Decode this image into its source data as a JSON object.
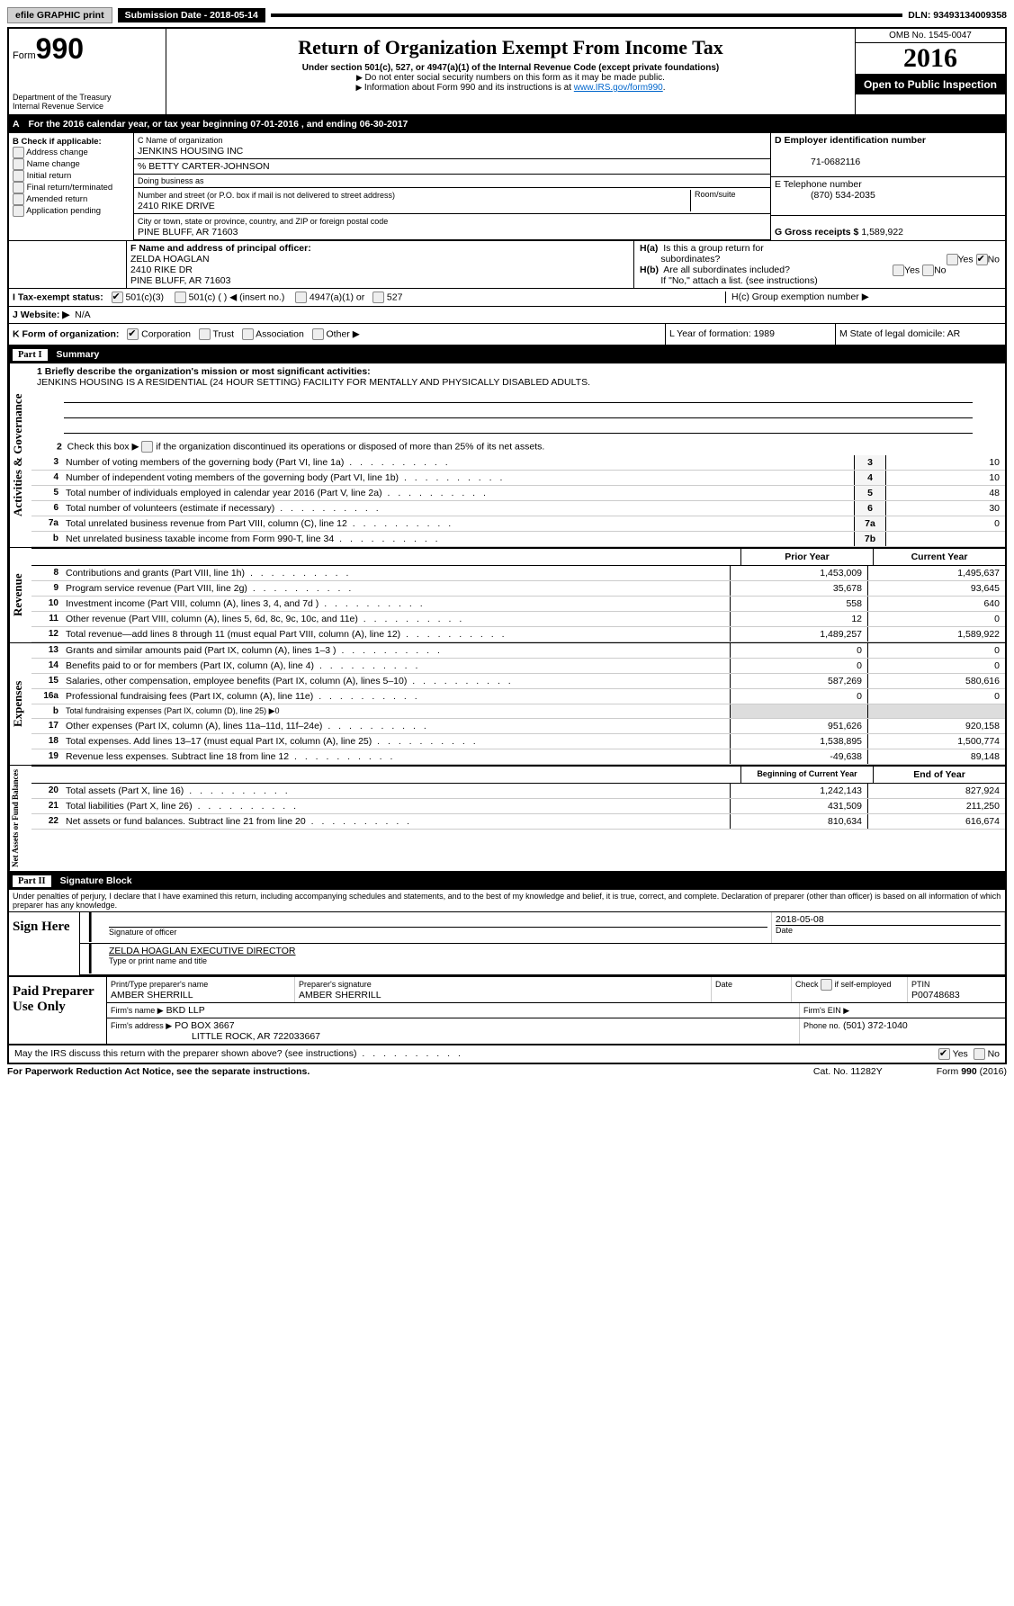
{
  "topbar": {
    "efile": "efile GRAPHIC print",
    "subdate_label": "Submission Date - 2018-05-14",
    "dln": "DLN: 93493134009358"
  },
  "header": {
    "form_label": "Form",
    "form_no": "990",
    "dept": "Department of the Treasury\nInternal Revenue Service",
    "title": "Return of Organization Exempt From Income Tax",
    "subtitle": "Under section 501(c), 527, or 4947(a)(1) of the Internal Revenue Code (except private foundations)",
    "note1": "Do not enter social security numbers on this form as it may be made public.",
    "note2": "Information about Form 990 and its instructions is at ",
    "note2_link": "www.IRS.gov/form990",
    "omb": "OMB No. 1545-0047",
    "year": "2016",
    "open": "Open to Public Inspection"
  },
  "period": {
    "label_a": "A",
    "text": "For the 2016 calendar year, or tax year beginning 07-01-2016   , and ending 06-30-2017"
  },
  "blockB": {
    "label": "B Check if applicable:",
    "opts": [
      "Address change",
      "Name change",
      "Initial return",
      "Final return/terminated",
      "Amended return",
      "Application pending"
    ]
  },
  "blockC": {
    "name_label": "C Name of organization",
    "name": "JENKINS HOUSING INC",
    "care_of": "% BETTY CARTER-JOHNSON",
    "dba_label": "Doing business as",
    "street_label": "Number and street (or P.O. box if mail is not delivered to street address)",
    "room_label": "Room/suite",
    "street": "2410 RIKE DRIVE",
    "city_label": "City or town, state or province, country, and ZIP or foreign postal code",
    "city": "PINE BLUFF, AR  71603"
  },
  "blockD": {
    "ein_label": "D Employer identification number",
    "ein": "71-0682116",
    "tel_label": "E Telephone number",
    "tel": "(870) 534-2035",
    "gross_label": "G Gross receipts $",
    "gross": "1,589,922"
  },
  "blockF": {
    "label": "F  Name and address of principal officer:",
    "name": "ZELDA HOAGLAN",
    "addr1": "2410 RIKE DR",
    "addr2": "PINE BLUFF, AR  71603"
  },
  "blockH": {
    "a_label": "H(a)  Is this a group return for subordinates?",
    "b_label": "H(b)  Are all subordinates included?",
    "b_note": "If \"No,\" attach a list. (see instructions)",
    "c_label": "H(c)  Group exemption number ▶"
  },
  "taxExempt": {
    "label": "I  Tax-exempt status:",
    "c3": "501(c)(3)",
    "c": "501(c) (   ) ◀ (insert no.)",
    "a1": "4947(a)(1) or",
    "s527": "527"
  },
  "website": {
    "label": "J  Website: ▶",
    "val": "N/A"
  },
  "kline": {
    "label": "K Form of organization:",
    "corp": "Corporation",
    "trust": "Trust",
    "assoc": "Association",
    "other": "Other ▶",
    "L": "L Year of formation: 1989",
    "M": "M State of legal domicile: AR"
  },
  "part1": {
    "title": "Summary",
    "q1_label": "1  Briefly describe the organization's mission or most significant activities:",
    "q1_text": "JENKINS HOUSING IS A RESIDENTIAL (24 HOUR SETTING) FACILITY FOR MENTALLY AND PHYSICALLY DISABLED ADULTS.",
    "q2": "Check this box ▶  if the organization discontinued its operations or disposed of more than 25% of its net assets.",
    "lines_gov": [
      {
        "no": "3",
        "desc": "Number of voting members of the governing body (Part VI, line 1a)",
        "box": "3",
        "val": "10"
      },
      {
        "no": "4",
        "desc": "Number of independent voting members of the governing body (Part VI, line 1b)",
        "box": "4",
        "val": "10"
      },
      {
        "no": "5",
        "desc": "Total number of individuals employed in calendar year 2016 (Part V, line 2a)",
        "box": "5",
        "val": "48"
      },
      {
        "no": "6",
        "desc": "Total number of volunteers (estimate if necessary)",
        "box": "6",
        "val": "30"
      },
      {
        "no": "7a",
        "desc": "Total unrelated business revenue from Part VIII, column (C), line 12",
        "box": "7a",
        "val": "0"
      },
      {
        "no": "b",
        "desc": "Net unrelated business taxable income from Form 990-T, line 34",
        "box": "7b",
        "val": ""
      }
    ],
    "head_prior": "Prior Year",
    "head_curr": "Current Year",
    "revenue": [
      {
        "no": "8",
        "desc": "Contributions and grants (Part VIII, line 1h)",
        "p": "1,453,009",
        "c": "1,495,637"
      },
      {
        "no": "9",
        "desc": "Program service revenue (Part VIII, line 2g)",
        "p": "35,678",
        "c": "93,645"
      },
      {
        "no": "10",
        "desc": "Investment income (Part VIII, column (A), lines 3, 4, and 7d )",
        "p": "558",
        "c": "640"
      },
      {
        "no": "11",
        "desc": "Other revenue (Part VIII, column (A), lines 5, 6d, 8c, 9c, 10c, and 11e)",
        "p": "12",
        "c": "0"
      },
      {
        "no": "12",
        "desc": "Total revenue—add lines 8 through 11 (must equal Part VIII, column (A), line 12)",
        "p": "1,489,257",
        "c": "1,589,922"
      }
    ],
    "expenses": [
      {
        "no": "13",
        "desc": "Grants and similar amounts paid (Part IX, column (A), lines 1–3 )",
        "p": "0",
        "c": "0"
      },
      {
        "no": "14",
        "desc": "Benefits paid to or for members (Part IX, column (A), line 4)",
        "p": "0",
        "c": "0"
      },
      {
        "no": "15",
        "desc": "Salaries, other compensation, employee benefits (Part IX, column (A), lines 5–10)",
        "p": "587,269",
        "c": "580,616"
      },
      {
        "no": "16a",
        "desc": "Professional fundraising fees (Part IX, column (A), line 11e)",
        "p": "0",
        "c": "0"
      },
      {
        "no": "b",
        "desc": "Total fundraising expenses (Part IX, column (D), line 25) ▶0",
        "p": "",
        "c": "",
        "shade": true
      },
      {
        "no": "17",
        "desc": "Other expenses (Part IX, column (A), lines 11a–11d, 11f–24e)",
        "p": "951,626",
        "c": "920,158"
      },
      {
        "no": "18",
        "desc": "Total expenses. Add lines 13–17 (must equal Part IX, column (A), line 25)",
        "p": "1,538,895",
        "c": "1,500,774"
      },
      {
        "no": "19",
        "desc": "Revenue less expenses. Subtract line 18 from line 12",
        "p": "-49,638",
        "c": "89,148"
      }
    ],
    "head_begin": "Beginning of Current Year",
    "head_end": "End of Year",
    "netassets": [
      {
        "no": "20",
        "desc": "Total assets (Part X, line 16)",
        "p": "1,242,143",
        "c": "827,924"
      },
      {
        "no": "21",
        "desc": "Total liabilities (Part X, line 26)",
        "p": "431,509",
        "c": "211,250"
      },
      {
        "no": "22",
        "desc": "Net assets or fund balances. Subtract line 21 from line 20",
        "p": "810,634",
        "c": "616,674"
      }
    ]
  },
  "part2": {
    "title": "Signature Block",
    "perjury": "Under penalties of perjury, I declare that I have examined this return, including accompanying schedules and statements, and to the best of my knowledge and belief, it is true, correct, and complete. Declaration of preparer (other than officer) is based on all information of which preparer has any knowledge.",
    "sign_here": "Sign Here",
    "sig_officer": "Signature of officer",
    "date_lbl": "Date",
    "date_val": "2018-05-08",
    "officer_name": "ZELDA HOAGLAN  EXECUTIVE DIRECTOR",
    "type_name": "Type or print name and title",
    "paid": "Paid Preparer Use Only",
    "prep_name_lbl": "Print/Type preparer's name",
    "prep_name": "AMBER SHERRILL",
    "prep_sig_lbl": "Preparer's signature",
    "prep_sig": "AMBER SHERRILL",
    "date2": "Date",
    "self_emp": "Check         if self-employed",
    "ptin_lbl": "PTIN",
    "ptin": "P00748683",
    "firm_name_lbl": "Firm's name    ▶",
    "firm_name": "BKD LLP",
    "firm_ein_lbl": "Firm's EIN ▶",
    "firm_addr_lbl": "Firm's address ▶",
    "firm_addr": "PO BOX 3667",
    "firm_addr2": "LITTLE ROCK, AR  722033667",
    "phone_lbl": "Phone no.",
    "phone": "(501) 372-1040",
    "discuss": "May the IRS discuss this return with the preparer shown above? (see instructions)",
    "yes": "Yes",
    "no": "No"
  },
  "footer": {
    "pra": "For Paperwork Reduction Act Notice, see the separate instructions.",
    "cat": "Cat. No. 11282Y",
    "form": "Form 990 (2016)"
  }
}
